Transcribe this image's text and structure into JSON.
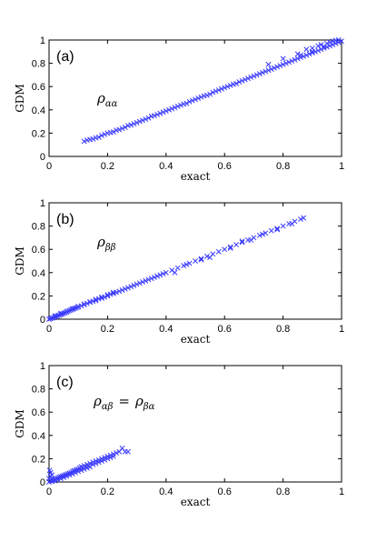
{
  "chart_data": [
    {
      "type": "scatter",
      "panel_label": "(a)",
      "annotation": "ρ_αα",
      "annotation_base": "ρ",
      "annotation_sub": "αα",
      "xlabel": "exact",
      "ylabel": "GDM",
      "xlim": [
        0,
        1
      ],
      "ylim": [
        0,
        1
      ],
      "xticks": [
        "0",
        "0.2",
        "0.4",
        "0.6",
        "0.8",
        "1"
      ],
      "yticks": [
        "0",
        "0.2",
        "0.4",
        "0.6",
        "0.8",
        "1"
      ],
      "marker": "x",
      "color": "#3a3aff",
      "grid": false,
      "points": [
        [
          0.12,
          0.13
        ],
        [
          0.13,
          0.14
        ],
        [
          0.14,
          0.145
        ],
        [
          0.15,
          0.15
        ],
        [
          0.16,
          0.16
        ],
        [
          0.17,
          0.165
        ],
        [
          0.18,
          0.18
        ],
        [
          0.19,
          0.19
        ],
        [
          0.2,
          0.2
        ],
        [
          0.21,
          0.205
        ],
        [
          0.22,
          0.21
        ],
        [
          0.23,
          0.225
        ],
        [
          0.24,
          0.23
        ],
        [
          0.25,
          0.24
        ],
        [
          0.26,
          0.25
        ],
        [
          0.27,
          0.265
        ],
        [
          0.28,
          0.27
        ],
        [
          0.29,
          0.28
        ],
        [
          0.3,
          0.29
        ],
        [
          0.31,
          0.3
        ],
        [
          0.32,
          0.31
        ],
        [
          0.33,
          0.32
        ],
        [
          0.34,
          0.33
        ],
        [
          0.35,
          0.345
        ],
        [
          0.36,
          0.35
        ],
        [
          0.37,
          0.36
        ],
        [
          0.38,
          0.37
        ],
        [
          0.39,
          0.38
        ],
        [
          0.4,
          0.39
        ],
        [
          0.41,
          0.4
        ],
        [
          0.42,
          0.41
        ],
        [
          0.43,
          0.42
        ],
        [
          0.44,
          0.43
        ],
        [
          0.45,
          0.44
        ],
        [
          0.46,
          0.45
        ],
        [
          0.47,
          0.455
        ],
        [
          0.48,
          0.47
        ],
        [
          0.49,
          0.48
        ],
        [
          0.5,
          0.49
        ],
        [
          0.51,
          0.5
        ],
        [
          0.52,
          0.51
        ],
        [
          0.53,
          0.52
        ],
        [
          0.54,
          0.525
        ],
        [
          0.55,
          0.535
        ],
        [
          0.56,
          0.55
        ],
        [
          0.57,
          0.56
        ],
        [
          0.58,
          0.57
        ],
        [
          0.59,
          0.58
        ],
        [
          0.6,
          0.59
        ],
        [
          0.61,
          0.6
        ],
        [
          0.62,
          0.61
        ],
        [
          0.63,
          0.62
        ],
        [
          0.64,
          0.625
        ],
        [
          0.65,
          0.64
        ],
        [
          0.66,
          0.65
        ],
        [
          0.67,
          0.66
        ],
        [
          0.68,
          0.67
        ],
        [
          0.69,
          0.68
        ],
        [
          0.7,
          0.69
        ],
        [
          0.71,
          0.7
        ],
        [
          0.72,
          0.71
        ],
        [
          0.73,
          0.72
        ],
        [
          0.74,
          0.73
        ],
        [
          0.75,
          0.74
        ],
        [
          0.76,
          0.75
        ],
        [
          0.77,
          0.76
        ],
        [
          0.78,
          0.77
        ],
        [
          0.79,
          0.78
        ],
        [
          0.8,
          0.79
        ],
        [
          0.81,
          0.8
        ],
        [
          0.82,
          0.81
        ],
        [
          0.83,
          0.82
        ],
        [
          0.84,
          0.83
        ],
        [
          0.85,
          0.84
        ],
        [
          0.86,
          0.85
        ],
        [
          0.87,
          0.86
        ],
        [
          0.88,
          0.87
        ],
        [
          0.89,
          0.88
        ],
        [
          0.9,
          0.89
        ],
        [
          0.91,
          0.9
        ],
        [
          0.92,
          0.91
        ],
        [
          0.93,
          0.92
        ],
        [
          0.94,
          0.93
        ],
        [
          0.95,
          0.94
        ],
        [
          0.96,
          0.95
        ],
        [
          0.97,
          0.96
        ],
        [
          0.98,
          0.97
        ],
        [
          0.99,
          0.98
        ],
        [
          1.0,
          0.99
        ],
        [
          0.75,
          0.79
        ],
        [
          0.8,
          0.84
        ],
        [
          0.85,
          0.88
        ],
        [
          0.9,
          0.93
        ],
        [
          0.92,
          0.95
        ],
        [
          0.95,
          0.97
        ],
        [
          0.97,
          0.99
        ],
        [
          0.99,
          1.0
        ],
        [
          0.88,
          0.92
        ],
        [
          0.93,
          0.96
        ],
        [
          0.96,
          0.98
        ],
        [
          0.98,
          0.995
        ],
        [
          0.94,
          0.945
        ],
        [
          0.9,
          0.9
        ],
        [
          0.86,
          0.87
        ]
      ]
    },
    {
      "type": "scatter",
      "panel_label": "(b)",
      "annotation": "ρ_ββ",
      "annotation_base": "ρ",
      "annotation_sub": "ββ",
      "xlabel": "exact",
      "ylabel": "GDM",
      "xlim": [
        0,
        1
      ],
      "ylim": [
        0,
        1
      ],
      "xticks": [
        "0",
        "0.2",
        "0.4",
        "0.6",
        "0.8",
        "1"
      ],
      "yticks": [
        "0",
        "0.2",
        "0.4",
        "0.6",
        "0.8",
        "1"
      ],
      "marker": "x",
      "color": "#3a3aff",
      "grid": false,
      "points": [
        [
          0.0,
          0.0
        ],
        [
          0.005,
          0.005
        ],
        [
          0.01,
          0.01
        ],
        [
          0.015,
          0.012
        ],
        [
          0.02,
          0.02
        ],
        [
          0.025,
          0.025
        ],
        [
          0.03,
          0.03
        ],
        [
          0.035,
          0.035
        ],
        [
          0.04,
          0.04
        ],
        [
          0.045,
          0.045
        ],
        [
          0.05,
          0.05
        ],
        [
          0.055,
          0.055
        ],
        [
          0.06,
          0.06
        ],
        [
          0.065,
          0.07
        ],
        [
          0.07,
          0.075
        ],
        [
          0.075,
          0.08
        ],
        [
          0.08,
          0.085
        ],
        [
          0.085,
          0.09
        ],
        [
          0.09,
          0.095
        ],
        [
          0.095,
          0.1
        ],
        [
          0.1,
          0.105
        ],
        [
          0.11,
          0.115
        ],
        [
          0.12,
          0.125
        ],
        [
          0.13,
          0.135
        ],
        [
          0.14,
          0.145
        ],
        [
          0.15,
          0.155
        ],
        [
          0.16,
          0.16
        ],
        [
          0.17,
          0.175
        ],
        [
          0.18,
          0.18
        ],
        [
          0.19,
          0.19
        ],
        [
          0.2,
          0.2
        ],
        [
          0.21,
          0.215
        ],
        [
          0.22,
          0.22
        ],
        [
          0.23,
          0.23
        ],
        [
          0.24,
          0.24
        ],
        [
          0.25,
          0.25
        ],
        [
          0.26,
          0.26
        ],
        [
          0.27,
          0.27
        ],
        [
          0.28,
          0.28
        ],
        [
          0.29,
          0.29
        ],
        [
          0.3,
          0.3
        ],
        [
          0.31,
          0.31
        ],
        [
          0.32,
          0.32
        ],
        [
          0.33,
          0.33
        ],
        [
          0.34,
          0.34
        ],
        [
          0.35,
          0.35
        ],
        [
          0.36,
          0.36
        ],
        [
          0.37,
          0.37
        ],
        [
          0.38,
          0.38
        ],
        [
          0.39,
          0.39
        ],
        [
          0.4,
          0.4
        ],
        [
          0.42,
          0.42
        ],
        [
          0.44,
          0.44
        ],
        [
          0.46,
          0.46
        ],
        [
          0.48,
          0.48
        ],
        [
          0.5,
          0.5
        ],
        [
          0.52,
          0.52
        ],
        [
          0.54,
          0.54
        ],
        [
          0.56,
          0.56
        ],
        [
          0.58,
          0.58
        ],
        [
          0.6,
          0.6
        ],
        [
          0.62,
          0.62
        ],
        [
          0.64,
          0.64
        ],
        [
          0.66,
          0.66
        ],
        [
          0.68,
          0.68
        ],
        [
          0.7,
          0.7
        ],
        [
          0.72,
          0.72
        ],
        [
          0.74,
          0.74
        ],
        [
          0.76,
          0.76
        ],
        [
          0.78,
          0.78
        ],
        [
          0.8,
          0.8
        ],
        [
          0.82,
          0.82
        ],
        [
          0.84,
          0.84
        ],
        [
          0.86,
          0.86
        ],
        [
          0.87,
          0.87
        ],
        [
          0.02,
          0.03
        ],
        [
          0.04,
          0.05
        ],
        [
          0.06,
          0.065
        ],
        [
          0.08,
          0.09
        ],
        [
          0.1,
          0.11
        ],
        [
          0.12,
          0.13
        ],
        [
          0.14,
          0.15
        ],
        [
          0.16,
          0.17
        ],
        [
          0.18,
          0.19
        ],
        [
          0.2,
          0.21
        ],
        [
          0.22,
          0.23
        ],
        [
          0.43,
          0.4
        ],
        [
          0.47,
          0.47
        ],
        [
          0.52,
          0.51
        ],
        [
          0.55,
          0.53
        ],
        [
          0.62,
          0.61
        ],
        [
          0.66,
          0.67
        ],
        [
          0.69,
          0.68
        ],
        [
          0.73,
          0.73
        ],
        [
          0.78,
          0.77
        ],
        [
          0.83,
          0.82
        ]
      ]
    },
    {
      "type": "scatter",
      "panel_label": "(c)",
      "annotation": "ρ_αβ = ρ_βα",
      "annotation_base": "ρ",
      "annotation_sub": "αβ",
      "annotation_eq": "=",
      "annotation_base2": "ρ",
      "annotation_sub2": "βα",
      "xlabel": "exact",
      "ylabel": "GDM",
      "xlim": [
        0,
        1
      ],
      "ylim": [
        0,
        1
      ],
      "xticks": [
        "0",
        "0.2",
        "0.4",
        "0.6",
        "0.8",
        "1"
      ],
      "yticks": [
        "0",
        "0.2",
        "0.4",
        "0.6",
        "0.8",
        "1"
      ],
      "marker": "x",
      "color": "#3a3aff",
      "grid": false,
      "points": [
        [
          0.0,
          0.0
        ],
        [
          0.005,
          0.01
        ],
        [
          0.01,
          0.02
        ],
        [
          0.01,
          0.005
        ],
        [
          0.015,
          0.015
        ],
        [
          0.02,
          0.025
        ],
        [
          0.02,
          0.01
        ],
        [
          0.025,
          0.03
        ],
        [
          0.03,
          0.035
        ],
        [
          0.03,
          0.02
        ],
        [
          0.035,
          0.04
        ],
        [
          0.04,
          0.045
        ],
        [
          0.04,
          0.03
        ],
        [
          0.045,
          0.05
        ],
        [
          0.05,
          0.055
        ],
        [
          0.05,
          0.04
        ],
        [
          0.055,
          0.06
        ],
        [
          0.06,
          0.065
        ],
        [
          0.06,
          0.05
        ],
        [
          0.065,
          0.07
        ],
        [
          0.07,
          0.075
        ],
        [
          0.07,
          0.06
        ],
        [
          0.075,
          0.08
        ],
        [
          0.08,
          0.09
        ],
        [
          0.08,
          0.07
        ],
        [
          0.085,
          0.095
        ],
        [
          0.09,
          0.1
        ],
        [
          0.09,
          0.08
        ],
        [
          0.095,
          0.105
        ],
        [
          0.1,
          0.11
        ],
        [
          0.1,
          0.09
        ],
        [
          0.105,
          0.12
        ],
        [
          0.11,
          0.13
        ],
        [
          0.11,
          0.1
        ],
        [
          0.115,
          0.125
        ],
        [
          0.12,
          0.14
        ],
        [
          0.12,
          0.11
        ],
        [
          0.125,
          0.13
        ],
        [
          0.13,
          0.15
        ],
        [
          0.13,
          0.12
        ],
        [
          0.135,
          0.14
        ],
        [
          0.14,
          0.16
        ],
        [
          0.14,
          0.13
        ],
        [
          0.15,
          0.17
        ],
        [
          0.15,
          0.15
        ],
        [
          0.16,
          0.18
        ],
        [
          0.16,
          0.16
        ],
        [
          0.17,
          0.19
        ],
        [
          0.17,
          0.17
        ],
        [
          0.18,
          0.2
        ],
        [
          0.18,
          0.18
        ],
        [
          0.19,
          0.21
        ],
        [
          0.19,
          0.19
        ],
        [
          0.2,
          0.22
        ],
        [
          0.2,
          0.2
        ],
        [
          0.21,
          0.23
        ],
        [
          0.21,
          0.21
        ],
        [
          0.22,
          0.24
        ],
        [
          0.22,
          0.22
        ],
        [
          0.23,
          0.25
        ],
        [
          0.24,
          0.26
        ],
        [
          0.25,
          0.29
        ],
        [
          0.26,
          0.26
        ],
        [
          0.27,
          0.26
        ],
        [
          0.005,
          0.08
        ],
        [
          0.005,
          0.05
        ],
        [
          0.0,
          0.03
        ],
        [
          0.01,
          0.06
        ],
        [
          0.002,
          0.1
        ]
      ]
    }
  ]
}
